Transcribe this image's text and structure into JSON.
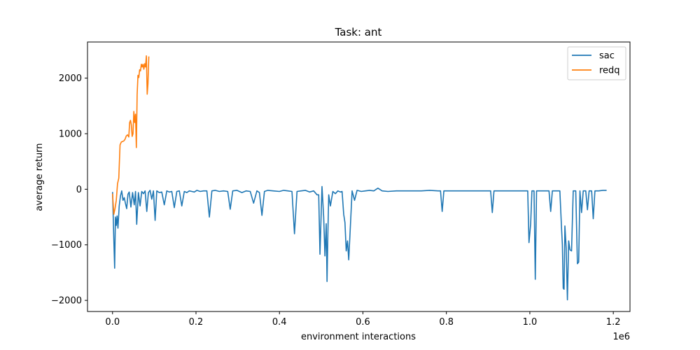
{
  "chart_data": {
    "type": "line",
    "title": "Task: ant",
    "xlabel": "environment interactions",
    "ylabel": "average return",
    "x_offset_label": "1e6",
    "xlim": [
      -0.06,
      1.24
    ],
    "ylim": [
      -2200,
      2650
    ],
    "xticks": [
      0.0,
      0.2,
      0.4,
      0.6,
      0.8,
      1.0,
      1.2
    ],
    "xtick_labels": [
      "0.0",
      "0.2",
      "0.4",
      "0.6",
      "0.8",
      "1.0",
      "1.2"
    ],
    "yticks": [
      -2000,
      -1000,
      0,
      1000,
      2000
    ],
    "ytick_labels": [
      "−2000",
      "−1000",
      "0",
      "1000",
      "2000"
    ],
    "grid": false,
    "legend_position": "top-right",
    "series": [
      {
        "name": "sac",
        "color": "#1f77b4",
        "points": [
          [
            0.0,
            -50
          ],
          [
            0.003,
            -900
          ],
          [
            0.005,
            -1420
          ],
          [
            0.007,
            -500
          ],
          [
            0.009,
            -650
          ],
          [
            0.011,
            -480
          ],
          [
            0.013,
            -700
          ],
          [
            0.016,
            -300
          ],
          [
            0.019,
            -120
          ],
          [
            0.022,
            -30
          ],
          [
            0.025,
            -200
          ],
          [
            0.028,
            -150
          ],
          [
            0.031,
            -260
          ],
          [
            0.034,
            -350
          ],
          [
            0.037,
            -90
          ],
          [
            0.04,
            -50
          ],
          [
            0.044,
            -320
          ],
          [
            0.048,
            -60
          ],
          [
            0.052,
            -280
          ],
          [
            0.055,
            -40
          ],
          [
            0.058,
            -630
          ],
          [
            0.062,
            -60
          ],
          [
            0.066,
            -300
          ],
          [
            0.07,
            -40
          ],
          [
            0.074,
            -80
          ],
          [
            0.078,
            -30
          ],
          [
            0.082,
            -400
          ],
          [
            0.086,
            -60
          ],
          [
            0.09,
            -20
          ],
          [
            0.094,
            -180
          ],
          [
            0.098,
            -30
          ],
          [
            0.102,
            -560
          ],
          [
            0.106,
            -30
          ],
          [
            0.112,
            -60
          ],
          [
            0.118,
            -50
          ],
          [
            0.124,
            -280
          ],
          [
            0.13,
            -30
          ],
          [
            0.136,
            -50
          ],
          [
            0.142,
            -40
          ],
          [
            0.148,
            -330
          ],
          [
            0.154,
            -40
          ],
          [
            0.16,
            -30
          ],
          [
            0.166,
            -300
          ],
          [
            0.172,
            -40
          ],
          [
            0.178,
            -60
          ],
          [
            0.184,
            -30
          ],
          [
            0.19,
            -40
          ],
          [
            0.196,
            -50
          ],
          [
            0.202,
            -20
          ],
          [
            0.21,
            -40
          ],
          [
            0.218,
            -30
          ],
          [
            0.226,
            -30
          ],
          [
            0.232,
            -500
          ],
          [
            0.238,
            -30
          ],
          [
            0.246,
            -20
          ],
          [
            0.256,
            -40
          ],
          [
            0.266,
            -30
          ],
          [
            0.276,
            -40
          ],
          [
            0.282,
            -360
          ],
          [
            0.288,
            -30
          ],
          [
            0.298,
            -20
          ],
          [
            0.31,
            -60
          ],
          [
            0.32,
            -30
          ],
          [
            0.33,
            -40
          ],
          [
            0.338,
            -250
          ],
          [
            0.346,
            -30
          ],
          [
            0.352,
            -60
          ],
          [
            0.358,
            -470
          ],
          [
            0.364,
            -40
          ],
          [
            0.372,
            -20
          ],
          [
            0.385,
            -30
          ],
          [
            0.4,
            -40
          ],
          [
            0.41,
            -20
          ],
          [
            0.42,
            -30
          ],
          [
            0.43,
            -40
          ],
          [
            0.436,
            -800
          ],
          [
            0.442,
            -40
          ],
          [
            0.452,
            -30
          ],
          [
            0.462,
            -20
          ],
          [
            0.472,
            -50
          ],
          [
            0.482,
            -30
          ],
          [
            0.49,
            -100
          ],
          [
            0.494,
            -100
          ],
          [
            0.497,
            -1170
          ],
          [
            0.502,
            50
          ],
          [
            0.506,
            -500
          ],
          [
            0.509,
            -1200
          ],
          [
            0.512,
            -620
          ],
          [
            0.514,
            -1660
          ],
          [
            0.516,
            -800
          ],
          [
            0.518,
            -100
          ],
          [
            0.522,
            -300
          ],
          [
            0.528,
            -40
          ],
          [
            0.534,
            -80
          ],
          [
            0.54,
            -30
          ],
          [
            0.546,
            -50
          ],
          [
            0.55,
            -40
          ],
          [
            0.554,
            -450
          ],
          [
            0.557,
            -600
          ],
          [
            0.56,
            -1110
          ],
          [
            0.563,
            -930
          ],
          [
            0.566,
            -1270
          ],
          [
            0.57,
            -650
          ],
          [
            0.574,
            -30
          ],
          [
            0.58,
            -200
          ],
          [
            0.586,
            -20
          ],
          [
            0.596,
            -40
          ],
          [
            0.606,
            -30
          ],
          [
            0.616,
            -20
          ],
          [
            0.626,
            -30
          ],
          [
            0.636,
            20
          ],
          [
            0.646,
            -30
          ],
          [
            0.66,
            -40
          ],
          [
            0.68,
            -30
          ],
          [
            0.7,
            -30
          ],
          [
            0.72,
            -30
          ],
          [
            0.74,
            -30
          ],
          [
            0.76,
            -20
          ],
          [
            0.78,
            -30
          ],
          [
            0.786,
            -30
          ],
          [
            0.79,
            -400
          ],
          [
            0.794,
            -30
          ],
          [
            0.81,
            -30
          ],
          [
            0.83,
            -30
          ],
          [
            0.85,
            -30
          ],
          [
            0.87,
            -30
          ],
          [
            0.89,
            -30
          ],
          [
            0.906,
            -30
          ],
          [
            0.91,
            -420
          ],
          [
            0.914,
            -30
          ],
          [
            0.93,
            -30
          ],
          [
            0.95,
            -30
          ],
          [
            0.97,
            -30
          ],
          [
            0.99,
            -30
          ],
          [
            0.995,
            -30
          ],
          [
            0.998,
            -960
          ],
          [
            1.002,
            -620
          ],
          [
            1.005,
            -30
          ],
          [
            1.01,
            -30
          ],
          [
            1.013,
            -1620
          ],
          [
            1.016,
            -30
          ],
          [
            1.03,
            -30
          ],
          [
            1.046,
            -30
          ],
          [
            1.05,
            -400
          ],
          [
            1.054,
            -30
          ],
          [
            1.066,
            -30
          ],
          [
            1.072,
            -30
          ],
          [
            1.076,
            -700
          ],
          [
            1.078,
            -1000
          ],
          [
            1.08,
            -1780
          ],
          [
            1.082,
            -1800
          ],
          [
            1.084,
            -660
          ],
          [
            1.087,
            -1050
          ],
          [
            1.09,
            -1990
          ],
          [
            1.093,
            -930
          ],
          [
            1.096,
            -1090
          ],
          [
            1.1,
            -1110
          ],
          [
            1.104,
            -30
          ],
          [
            1.11,
            -30
          ],
          [
            1.114,
            -1340
          ],
          [
            1.117,
            -1310
          ],
          [
            1.12,
            -30
          ],
          [
            1.124,
            -420
          ],
          [
            1.128,
            -30
          ],
          [
            1.134,
            -30
          ],
          [
            1.138,
            -370
          ],
          [
            1.142,
            -30
          ],
          [
            1.148,
            -30
          ],
          [
            1.152,
            -530
          ],
          [
            1.156,
            -30
          ],
          [
            1.165,
            -30
          ],
          [
            1.175,
            -20
          ],
          [
            1.184,
            -20
          ]
        ]
      },
      {
        "name": "redq",
        "color": "#ff7f0e",
        "points": [
          [
            0.0,
            -80
          ],
          [
            0.003,
            -450
          ],
          [
            0.006,
            -350
          ],
          [
            0.009,
            -200
          ],
          [
            0.012,
            100
          ],
          [
            0.015,
            200
          ],
          [
            0.018,
            800
          ],
          [
            0.021,
            850
          ],
          [
            0.024,
            860
          ],
          [
            0.027,
            870
          ],
          [
            0.03,
            900
          ],
          [
            0.033,
            960
          ],
          [
            0.036,
            980
          ],
          [
            0.039,
            940
          ],
          [
            0.041,
            1200
          ],
          [
            0.043,
            1240
          ],
          [
            0.045,
            1160
          ],
          [
            0.047,
            950
          ],
          [
            0.049,
            1000
          ],
          [
            0.051,
            1400
          ],
          [
            0.053,
            1200
          ],
          [
            0.055,
            1350
          ],
          [
            0.057,
            750
          ],
          [
            0.059,
            1700
          ],
          [
            0.061,
            2050
          ],
          [
            0.063,
            2010
          ],
          [
            0.065,
            2150
          ],
          [
            0.067,
            2130
          ],
          [
            0.069,
            2250
          ],
          [
            0.071,
            2200
          ],
          [
            0.073,
            2250
          ],
          [
            0.075,
            2160
          ],
          [
            0.077,
            2260
          ],
          [
            0.079,
            2200
          ],
          [
            0.081,
            2400
          ],
          [
            0.083,
            1710
          ],
          [
            0.085,
            1900
          ],
          [
            0.087,
            2390
          ]
        ]
      }
    ]
  }
}
